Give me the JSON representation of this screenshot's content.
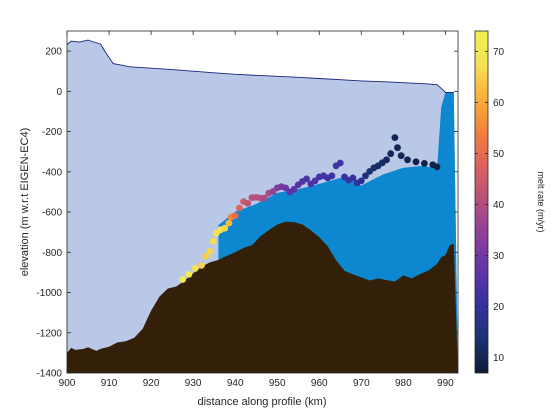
{
  "chart_data": {
    "type": "area",
    "title": "",
    "xlabel": "distance along profile (km)",
    "ylabel": "elevation (m w.r.t EIGEN-EC4)",
    "xlim": [
      900,
      993
    ],
    "ylim": [
      -1400,
      300
    ],
    "xticks": [
      900,
      910,
      920,
      930,
      940,
      950,
      960,
      970,
      980,
      990
    ],
    "yticks": [
      200,
      0,
      -200,
      -400,
      -600,
      -800,
      -1000,
      -1200,
      -1400
    ],
    "grid": false,
    "colors": {
      "ice": "#b8c8e6",
      "ocean": "#0c87d0",
      "bedrock": "#342008",
      "surface_line": "#1a237e"
    },
    "surface": {
      "x": [
        900,
        901,
        903,
        905,
        906,
        908,
        909,
        911,
        913,
        915,
        920,
        925,
        930,
        935,
        940,
        945,
        950,
        955,
        960,
        965,
        970,
        975,
        980,
        985,
        988,
        989,
        990,
        991,
        992
      ],
      "y": [
        233,
        250,
        245,
        255,
        248,
        235,
        200,
        138,
        130,
        122,
        115,
        108,
        100,
        92,
        85,
        80,
        75,
        70,
        64,
        58,
        52,
        48,
        43,
        38,
        33,
        15,
        -5,
        -5,
        -5
      ]
    },
    "bedrock": {
      "x": [
        900,
        901,
        902,
        904,
        905,
        907,
        908,
        910,
        912,
        914,
        916,
        918,
        920,
        922,
        924,
        926,
        928,
        930,
        932,
        934,
        936,
        938,
        940,
        942,
        944,
        946,
        948,
        950,
        952,
        954,
        956,
        958,
        960,
        962,
        964,
        966,
        968,
        970,
        972,
        974,
        976,
        978,
        980,
        982,
        984,
        986,
        988,
        989,
        990,
        991,
        992
      ],
      "y": [
        -1300,
        -1275,
        -1285,
        -1280,
        -1272,
        -1290,
        -1280,
        -1270,
        -1248,
        -1242,
        -1225,
        -1180,
        -1090,
        -1020,
        -980,
        -970,
        -940,
        -905,
        -872,
        -850,
        -838,
        -818,
        -800,
        -778,
        -765,
        -720,
        -690,
        -662,
        -648,
        -650,
        -662,
        -690,
        -725,
        -770,
        -840,
        -892,
        -910,
        -925,
        -940,
        -930,
        -938,
        -945,
        -915,
        -930,
        -908,
        -890,
        -858,
        -825,
        -815,
        -765,
        -758
      ]
    },
    "ocean": {
      "x": [
        936,
        940,
        945,
        950,
        955,
        960,
        965,
        968,
        970,
        975,
        980,
        985,
        988,
        989,
        990,
        991,
        992
      ],
      "y": [
        -665,
        -598,
        -560,
        -505,
        -487,
        -460,
        -430,
        -445,
        -468,
        -415,
        -380,
        -370,
        -388,
        -80,
        -5,
        -5,
        -5
      ]
    },
    "colorbar": {
      "label": "melt rate (m/yr)",
      "range": [
        7,
        74
      ],
      "ticks": [
        10,
        20,
        30,
        40,
        50,
        60,
        70
      ],
      "colormap": [
        "#0d1b3a",
        "#1b3270",
        "#3631a0",
        "#6135a8",
        "#8a3f9b",
        "#b4507e",
        "#d9605e",
        "#f07f3e",
        "#f9ad3a",
        "#f5e252",
        "#f0f052"
      ]
    },
    "series": [
      {
        "name": "melt rate (m/yr)",
        "type": "scatter",
        "x": [
          927.5,
          929,
          930.5,
          932,
          933,
          934,
          934.8,
          935.5,
          936.5,
          937.5,
          938.5,
          939,
          940,
          941,
          942,
          943,
          944,
          945,
          946,
          947,
          948,
          949,
          950,
          951,
          952,
          953,
          954,
          955,
          956,
          957,
          958,
          959,
          960,
          961,
          962,
          963,
          964,
          965,
          966,
          967,
          968,
          969,
          970,
          971,
          972,
          973,
          974,
          975,
          976,
          977,
          978,
          978.6,
          979.5,
          981,
          983,
          985,
          987,
          988
        ],
        "y": [
          -935,
          -910,
          -880,
          -865,
          -820,
          -795,
          -745,
          -705,
          -688,
          -680,
          -655,
          -625,
          -618,
          -580,
          -548,
          -557,
          -528,
          -527,
          -530,
          -530,
          -506,
          -498,
          -480,
          -474,
          -480,
          -500,
          -487,
          -465,
          -448,
          -435,
          -460,
          -445,
          -425,
          -420,
          -430,
          -420,
          -370,
          -356,
          -425,
          -441,
          -430,
          -455,
          -445,
          -420,
          -398,
          -380,
          -370,
          -355,
          -340,
          -310,
          -230,
          -280,
          -320,
          -340,
          -350,
          -358,
          -365,
          -375
        ],
        "melt_rate": [
          72,
          70,
          68,
          65,
          65,
          66,
          67,
          69,
          68,
          66,
          62,
          55,
          50,
          48,
          45,
          42,
          40,
          41,
          40,
          39,
          38,
          35,
          32,
          30,
          28,
          26,
          26,
          26,
          25,
          24,
          24,
          24,
          23,
          23,
          22,
          22,
          22,
          22,
          21,
          21,
          20,
          20,
          18,
          15,
          14,
          13,
          12,
          12,
          11,
          10,
          10,
          10,
          10,
          10,
          9,
          9,
          9,
          9
        ]
      }
    ]
  }
}
